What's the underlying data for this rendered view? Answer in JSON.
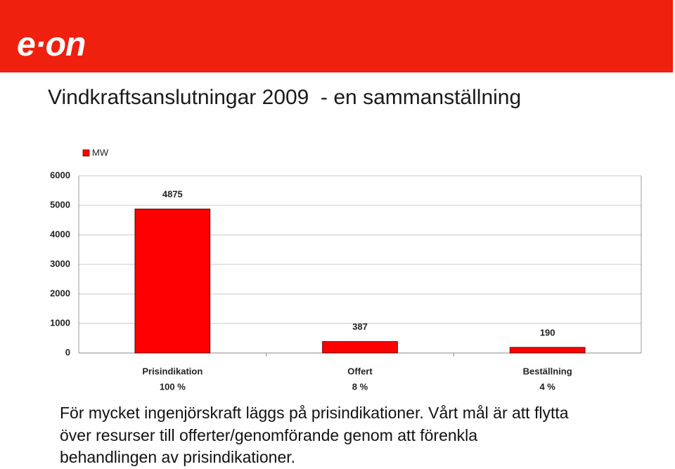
{
  "slide": {
    "logo": "e·on",
    "title": "Vindkraftsanslutningar 2009  - en sammanställning",
    "body_lines": [
      "För mycket ingenjörskraft läggs på prisindikationer. Vårt mål är att flytta",
      "över resurser till offerter/genomförande genom att förenkla",
      "behandlingen av prisindikationer."
    ]
  },
  "chart_data": {
    "type": "bar",
    "categories": [
      "Prisindikation",
      "Offert",
      "Beställning"
    ],
    "category_notes": [
      "100 %",
      "8 %",
      "4 %"
    ],
    "series": [
      {
        "name": "MW",
        "color": "#ff0000",
        "values": [
          4875,
          387,
          190
        ]
      }
    ],
    "ylim": [
      0,
      6000
    ],
    "yticks": [
      0,
      1000,
      2000,
      3000,
      4000,
      5000,
      6000
    ],
    "grid": true,
    "legend": "top-left"
  }
}
